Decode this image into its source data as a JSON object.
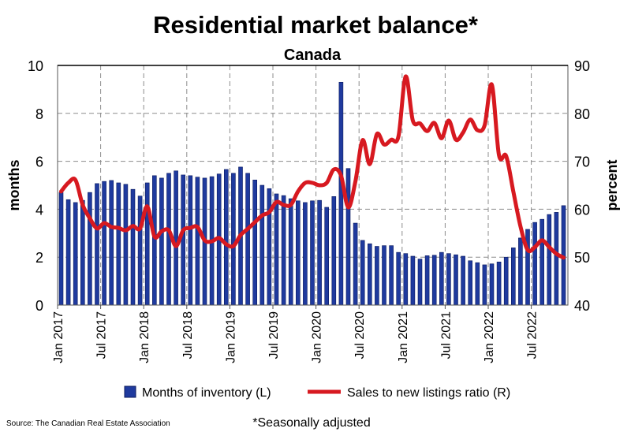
{
  "chart_data": {
    "type": "bar+line",
    "title": "Residential market balance*",
    "subtitle": "Canada",
    "ylabel_left": "months",
    "ylabel_right": "percent",
    "ylim_left": [
      0,
      10
    ],
    "ylim_right": [
      40,
      90
    ],
    "yticks_left": [
      "0",
      "2",
      "4",
      "6",
      "8",
      "10"
    ],
    "yticks_right": [
      "40",
      "50",
      "60",
      "70",
      "80",
      "90"
    ],
    "xtick_labels": [
      "Jan 2017",
      "Jul 2017",
      "Jan 2018",
      "Jul 2018",
      "Jan 2019",
      "Jul 2019",
      "Jan 2020",
      "Jul 2020",
      "Jan 2021",
      "Jul 2021",
      "Jan 2022",
      "Jul 2022"
    ],
    "x_start": "Jan 2017",
    "x_end": "Nov 2022",
    "grid": true,
    "legend_position": "bottom",
    "colors": {
      "bars": "#1f3a9e",
      "line": "#d71920"
    },
    "series": [
      {
        "name": "Months of inventory (L)",
        "type": "bar",
        "axis": "left",
        "values": [
          4.7,
          4.4,
          4.28,
          4.37,
          4.7,
          5.07,
          5.16,
          5.2,
          5.1,
          5.04,
          4.83,
          4.55,
          5.1,
          5.4,
          5.3,
          5.5,
          5.6,
          5.43,
          5.4,
          5.34,
          5.3,
          5.36,
          5.47,
          5.66,
          5.5,
          5.76,
          5.5,
          5.22,
          5.0,
          4.86,
          4.64,
          4.57,
          4.44,
          4.35,
          4.28,
          4.35,
          4.37,
          4.08,
          4.53,
          9.3,
          5.7,
          3.42,
          2.7,
          2.56,
          2.45,
          2.48,
          2.48,
          2.2,
          2.15,
          2.04,
          1.92,
          2.06,
          2.08,
          2.2,
          2.15,
          2.1,
          2.04,
          1.85,
          1.77,
          1.68,
          1.72,
          1.8,
          2.0,
          2.39,
          2.8,
          3.16,
          3.45,
          3.58,
          3.78,
          3.87,
          4.15
        ]
      },
      {
        "name": "Sales to new listings ratio (R)",
        "type": "line",
        "axis": "right",
        "values": [
          63.7,
          65.5,
          66.1,
          60.9,
          58.1,
          56.0,
          57.1,
          56.3,
          56.1,
          55.6,
          56.5,
          56.0,
          60.6,
          54.3,
          55.4,
          55.6,
          52.3,
          55.6,
          56.1,
          56.3,
          53.5,
          53.3,
          54.0,
          52.7,
          52.3,
          54.6,
          55.9,
          57.3,
          58.7,
          59.4,
          61.5,
          60.9,
          60.9,
          63.7,
          65.5,
          65.5,
          65.0,
          65.5,
          68.3,
          67.0,
          60.4,
          65.8,
          74.4,
          69.4,
          75.7,
          73.5,
          74.5,
          75.2,
          87.7,
          78.5,
          77.9,
          76.3,
          78.0,
          74.8,
          78.5,
          74.5,
          76.0,
          78.7,
          76.5,
          77.5,
          86.0,
          71.3,
          71.1,
          63.7,
          56.4,
          51.5,
          52.1,
          53.5,
          52.1,
          50.7,
          49.9
        ]
      }
    ]
  },
  "footer": {
    "source": "Source: The Canadian Real Estate Association",
    "note": "*Seasonally adjusted"
  }
}
